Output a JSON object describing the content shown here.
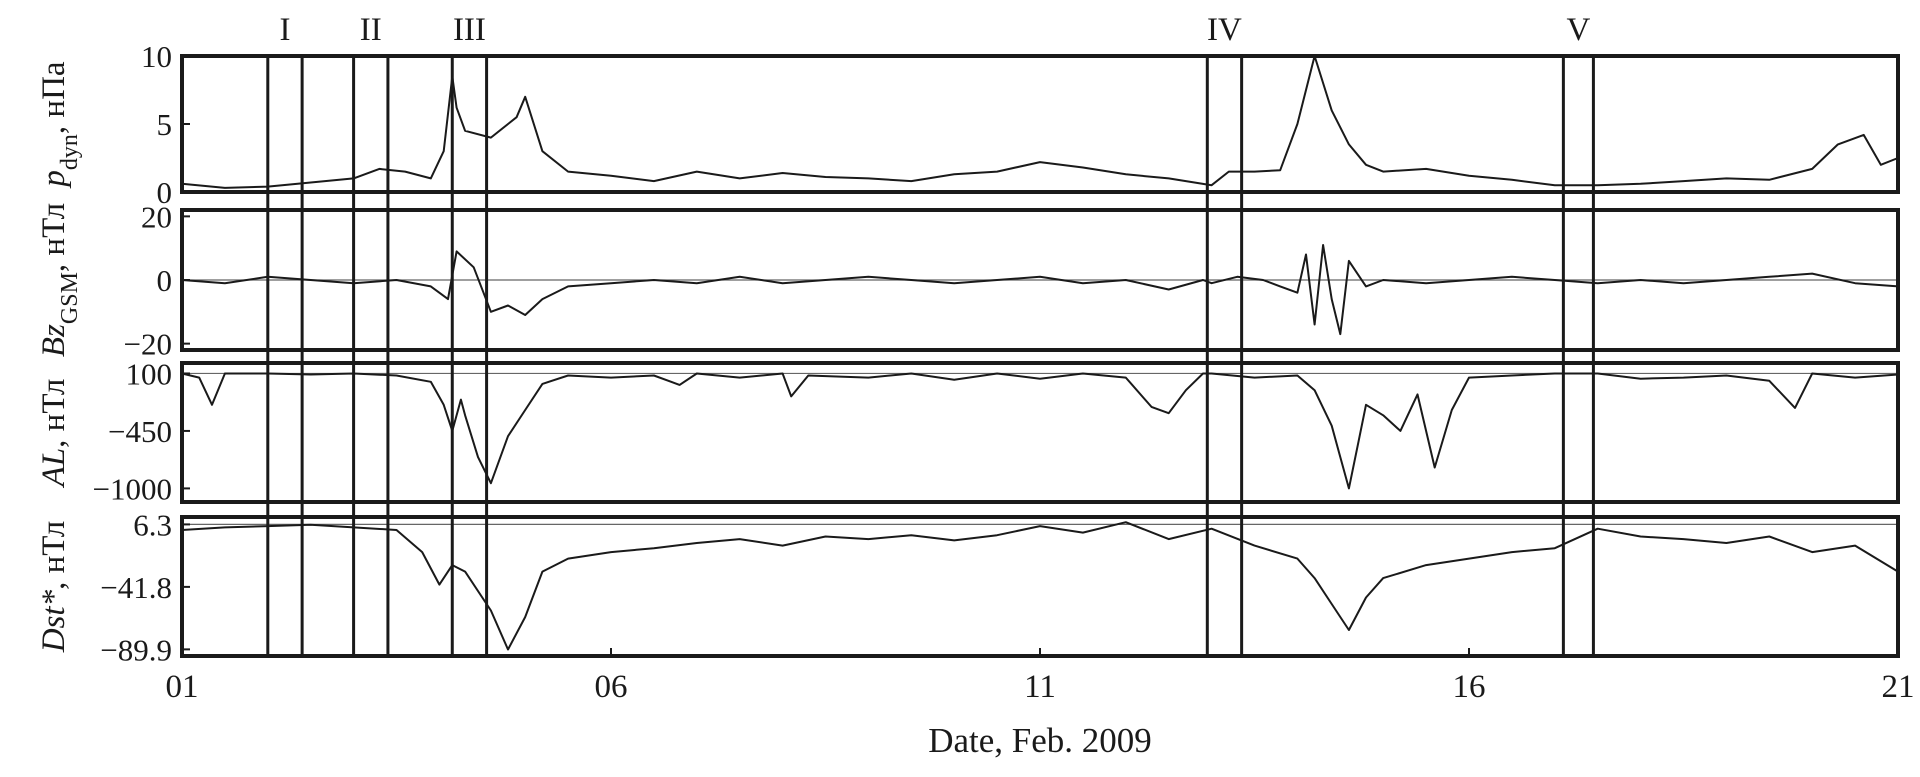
{
  "chart_data": {
    "type": "line",
    "xlabel": "Date, Feb. 2009",
    "x_ticks": [
      "01",
      "06",
      "11",
      "16",
      "21"
    ],
    "x_tick_values": [
      1,
      6,
      11,
      16,
      21
    ],
    "xlim": [
      1,
      21
    ],
    "intervals": [
      {
        "label": "I",
        "start": 2.0,
        "end": 2.4
      },
      {
        "label": "II",
        "start": 3.0,
        "end": 3.4
      },
      {
        "label": "III",
        "start": 4.15,
        "end": 4.55
      },
      {
        "label": "IV",
        "start": 12.95,
        "end": 13.35
      },
      {
        "label": "V",
        "start": 17.1,
        "end": 17.45
      }
    ],
    "panels": [
      {
        "id": "pdyn",
        "ylabel": "p",
        "ylabel_sub": "dyn",
        "ylabel_unit": ", нПа",
        "yticks": [
          "10",
          "5",
          "0"
        ],
        "ytick_values": [
          10,
          5,
          0
        ],
        "ylim": [
          0,
          10
        ],
        "reference_line": null,
        "series": {
          "x": [
            1,
            1.5,
            2,
            2.5,
            3,
            3.3,
            3.6,
            3.9,
            4.05,
            4.15,
            4.2,
            4.3,
            4.6,
            4.9,
            5,
            5.2,
            5.5,
            6,
            6.5,
            7,
            7.5,
            8,
            8.5,
            9,
            9.5,
            10,
            10.5,
            11,
            11.5,
            12,
            12.5,
            13,
            13.2,
            13.5,
            13.8,
            14,
            14.2,
            14.4,
            14.6,
            14.8,
            15,
            15.5,
            16,
            16.5,
            17,
            17.5,
            18,
            18.5,
            19,
            19.5,
            20,
            20.3,
            20.6,
            20.8,
            21
          ],
          "y": [
            0.6,
            0.3,
            0.4,
            0.7,
            1.0,
            1.7,
            1.5,
            1.0,
            3.0,
            8.5,
            6.2,
            4.5,
            4.0,
            5.5,
            7.0,
            3.0,
            1.5,
            1.2,
            0.8,
            1.5,
            1.0,
            1.4,
            1.1,
            1.0,
            0.8,
            1.3,
            1.5,
            2.2,
            1.8,
            1.3,
            1.0,
            0.5,
            1.5,
            1.5,
            1.6,
            5.0,
            10.0,
            6.0,
            3.5,
            2.0,
            1.5,
            1.7,
            1.2,
            0.9,
            0.5,
            0.5,
            0.6,
            0.8,
            1.0,
            0.9,
            1.7,
            3.5,
            4.2,
            2.0,
            2.5
          ]
        }
      },
      {
        "id": "bz",
        "ylabel": "Bz",
        "ylabel_sub": "GSM",
        "ylabel_unit": ", нТл",
        "yticks": [
          "20",
          "0",
          "−20"
        ],
        "ytick_values": [
          20,
          0,
          -20
        ],
        "ylim": [
          -22,
          22
        ],
        "reference_line": 0,
        "series": {
          "x": [
            1,
            1.5,
            2,
            2.5,
            3,
            3.5,
            3.9,
            4.1,
            4.2,
            4.4,
            4.6,
            4.8,
            5,
            5.2,
            5.5,
            6,
            6.5,
            7,
            7.5,
            8,
            8.5,
            9,
            9.5,
            10,
            10.5,
            11,
            11.5,
            12,
            12.5,
            12.9,
            13,
            13.3,
            13.6,
            13.8,
            14,
            14.1,
            14.2,
            14.3,
            14.4,
            14.5,
            14.6,
            14.8,
            15,
            15.5,
            16,
            16.5,
            17,
            17.5,
            18,
            18.5,
            19,
            19.5,
            20,
            20.5,
            21
          ],
          "y": [
            0,
            -1,
            1,
            0,
            -1,
            0,
            -2,
            -6,
            9,
            4,
            -10,
            -8,
            -11,
            -6,
            -2,
            -1,
            0,
            -1,
            1,
            -1,
            0,
            1,
            0,
            -1,
            0,
            1,
            -1,
            0,
            -3,
            0,
            -1,
            1,
            0,
            -2,
            -4,
            8,
            -14,
            11,
            -6,
            -17,
            6,
            -2,
            0,
            -1,
            0,
            1,
            0,
            -1,
            0,
            -1,
            0,
            1,
            2,
            -1,
            -2
          ]
        }
      },
      {
        "id": "al",
        "ylabel": "AL",
        "ylabel_sub": "",
        "ylabel_unit": ", нТл",
        "yticks": [
          "100",
          "−450",
          "−1000"
        ],
        "ytick_values": [
          100,
          -450,
          -1000
        ],
        "ylim": [
          -1130,
          200
        ],
        "reference_line": 100,
        "series": {
          "x": [
            1,
            1.2,
            1.35,
            1.5,
            2,
            2.5,
            3,
            3.5,
            3.9,
            4.05,
            4.15,
            4.25,
            4.3,
            4.45,
            4.6,
            4.8,
            5,
            5.2,
            5.5,
            6,
            6.5,
            6.8,
            7,
            7.5,
            8,
            8.1,
            8.3,
            9,
            9.5,
            10,
            10.5,
            11,
            11.5,
            12,
            12.3,
            12.5,
            12.7,
            12.9,
            13,
            13.5,
            14,
            14.2,
            14.4,
            14.5,
            14.6,
            14.7,
            14.8,
            15,
            15.2,
            15.4,
            15.6,
            15.8,
            16,
            16.5,
            17,
            17.5,
            18,
            18.5,
            19,
            19.5,
            19.8,
            20,
            20.5,
            21
          ],
          "y": [
            100,
            60,
            -200,
            100,
            100,
            90,
            100,
            80,
            20,
            -200,
            -450,
            -150,
            -300,
            -700,
            -950,
            -500,
            -250,
            0,
            80,
            60,
            80,
            -10,
            100,
            60,
            100,
            -120,
            80,
            60,
            100,
            40,
            100,
            50,
            100,
            60,
            -220,
            -280,
            -60,
            100,
            100,
            60,
            80,
            -60,
            -400,
            -700,
            -1000,
            -600,
            -200,
            -300,
            -450,
            -100,
            -800,
            -250,
            60,
            80,
            100,
            100,
            50,
            60,
            80,
            30,
            -230,
            100,
            60,
            90
          ]
        }
      },
      {
        "id": "dst",
        "ylabel": "Dst*",
        "ylabel_sub": "",
        "ylabel_unit": ", нТл",
        "yticks": [
          "6.3",
          "−41.8",
          "−89.9"
        ],
        "ytick_values": [
          6.3,
          -41.8,
          -89.9
        ],
        "ylim": [
          -95,
          12
        ],
        "reference_line": 6.3,
        "series": {
          "x": [
            1,
            1.5,
            2,
            2.5,
            3,
            3.5,
            3.8,
            4,
            4.15,
            4.3,
            4.6,
            4.8,
            5,
            5.2,
            5.5,
            6,
            6.5,
            7,
            7.5,
            8,
            8.5,
            9,
            9.5,
            10,
            10.5,
            11,
            11.5,
            12,
            12.5,
            13,
            13.5,
            14,
            14.2,
            14.4,
            14.6,
            14.8,
            15,
            15.5,
            16,
            16.5,
            17,
            17.5,
            18,
            18.5,
            19,
            19.5,
            20,
            20.5,
            21
          ],
          "y": [
            2,
            4,
            5,
            6,
            4,
            2,
            -15,
            -40,
            -25,
            -30,
            -60,
            -90,
            -65,
            -30,
            -20,
            -15,
            -12,
            -8,
            -5,
            -10,
            -3,
            -5,
            -2,
            -6,
            -2,
            5,
            0,
            8,
            -5,
            3,
            -10,
            -20,
            -35,
            -55,
            -75,
            -50,
            -35,
            -25,
            -20,
            -15,
            -12,
            3,
            -3,
            -5,
            -8,
            -3,
            -15,
            -10,
            -30
          ]
        }
      }
    ]
  }
}
